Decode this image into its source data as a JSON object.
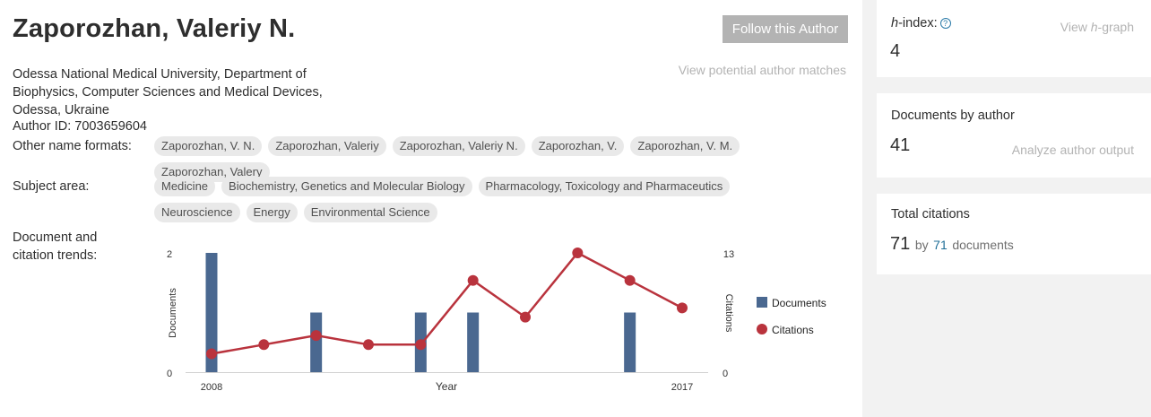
{
  "author": {
    "name": "Zaporozhan, Valeriy N.",
    "follow_label": "Follow this Author",
    "matches_label": "View potential author matches",
    "affiliation_lines": [
      "Odessa National Medical University, Department of",
      "Biophysics, Computer Sciences and Medical Devices,",
      "Odessa, Ukraine"
    ],
    "author_id": "Author ID: 7003659604"
  },
  "other_names": {
    "label": "Other name formats:",
    "items": [
      "Zaporozhan, V. N.",
      "Zaporozhan, Valeriy",
      "Zaporozhan, Valeriy N.",
      "Zaporozhan, V.",
      "Zaporozhan, V. M.",
      "Zaporozhan, Valery"
    ]
  },
  "subject_area": {
    "label": "Subject area:",
    "items": [
      "Medicine",
      "Biochemistry, Genetics and Molecular Biology",
      "Pharmacology, Toxicology and Pharmaceutics",
      "Neuroscience",
      "Energy",
      "Environmental Science"
    ]
  },
  "trends": {
    "label_line1": "Document and",
    "label_line2": "citation trends:"
  },
  "chart_data": {
    "type": "bar",
    "x": [
      2008,
      2009,
      2010,
      2011,
      2012,
      2013,
      2014,
      2015,
      2016,
      2017
    ],
    "x_tick_labels": [
      "2008",
      "2017"
    ],
    "xlabel": "Year",
    "ylabel_left": "Documents",
    "ylabel_right": "Citations",
    "ylim_left": [
      0,
      2
    ],
    "ylim_right": [
      0,
      13
    ],
    "left_ticks": [
      "2",
      "0"
    ],
    "right_ticks": [
      "13",
      "0"
    ],
    "series": [
      {
        "name": "Documents",
        "kind": "bar",
        "axis": "left",
        "color": "#4a6890",
        "values": [
          2,
          0,
          1,
          0,
          1,
          1,
          0,
          0,
          1,
          0
        ]
      },
      {
        "name": "Citations",
        "kind": "line",
        "axis": "right",
        "color": "#b9333d",
        "values": [
          2,
          3,
          4,
          3,
          3,
          10,
          6,
          13,
          10,
          7
        ]
      }
    ],
    "legend_position": "right",
    "grid": false
  },
  "metrics": {
    "h_index": {
      "label": "-index:",
      "label_prefix": "h",
      "value": "4",
      "link_prefix": "View ",
      "link_italic": "h",
      "link_suffix": "-graph",
      "help_icon": "question-circle-icon"
    },
    "documents": {
      "label": "Documents by author",
      "value": "41",
      "link": "Analyze author output"
    },
    "citations": {
      "label": "Total citations",
      "value": "71",
      "by": "by",
      "doc_count": "71",
      "docs_word": "documents"
    }
  }
}
